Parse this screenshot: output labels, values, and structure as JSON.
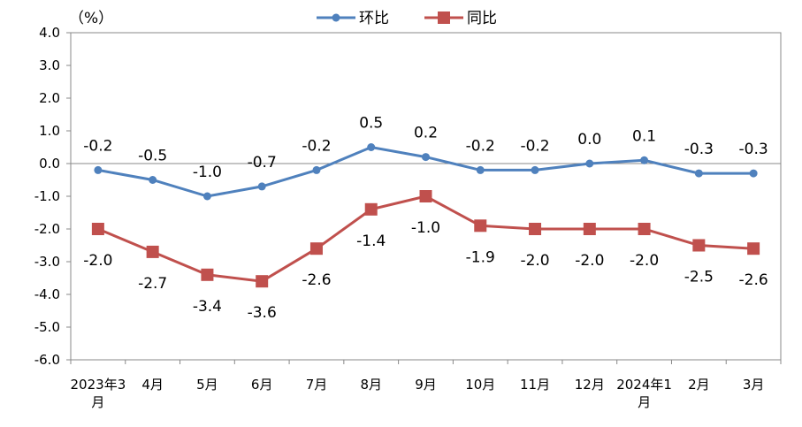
{
  "chart_data": {
    "type": "line",
    "unit_label": "（%）",
    "categories": [
      [
        "2023年3",
        "月"
      ],
      [
        "4月"
      ],
      [
        "5月"
      ],
      [
        "6月"
      ],
      [
        "7月"
      ],
      [
        "8月"
      ],
      [
        "9月"
      ],
      [
        "10月"
      ],
      [
        "11月"
      ],
      [
        "12月"
      ],
      [
        "2024年1",
        "月"
      ],
      [
        "2月"
      ],
      [
        "3月"
      ]
    ],
    "ylim": [
      -6.0,
      4.0
    ],
    "yticks": [
      "4.0",
      "3.0",
      "2.0",
      "1.0",
      "0.0",
      "-1.0",
      "-2.0",
      "-3.0",
      "-4.0",
      "-5.0",
      "-6.0"
    ],
    "grid": false,
    "legend_position": "top",
    "series": [
      {
        "name": "环比",
        "color": "#4f81bd",
        "marker": "circle",
        "values": [
          -0.2,
          -0.5,
          -1.0,
          -0.7,
          -0.2,
          0.5,
          0.2,
          -0.2,
          -0.2,
          0.0,
          0.1,
          -0.3,
          -0.3
        ],
        "labels": [
          "-0.2",
          "-0.5",
          "-1.0",
          "-0.7",
          "-0.2",
          "0.5",
          "0.2",
          "-0.2",
          "-0.2",
          "0.0",
          "0.1",
          "-0.3",
          "-0.3"
        ]
      },
      {
        "name": "同比",
        "color": "#c0504d",
        "marker": "square",
        "values": [
          -2.0,
          -2.7,
          -3.4,
          -3.6,
          -2.6,
          -1.4,
          -1.0,
          -1.9,
          -2.0,
          -2.0,
          -2.0,
          -2.5,
          -2.6
        ],
        "labels": [
          "-2.0",
          "-2.7",
          "-3.4",
          "-3.6",
          "-2.6",
          "-1.4",
          "-1.0",
          "-1.9",
          "-2.0",
          "-2.0",
          "-2.0",
          "-2.5",
          "-2.6"
        ]
      }
    ]
  }
}
